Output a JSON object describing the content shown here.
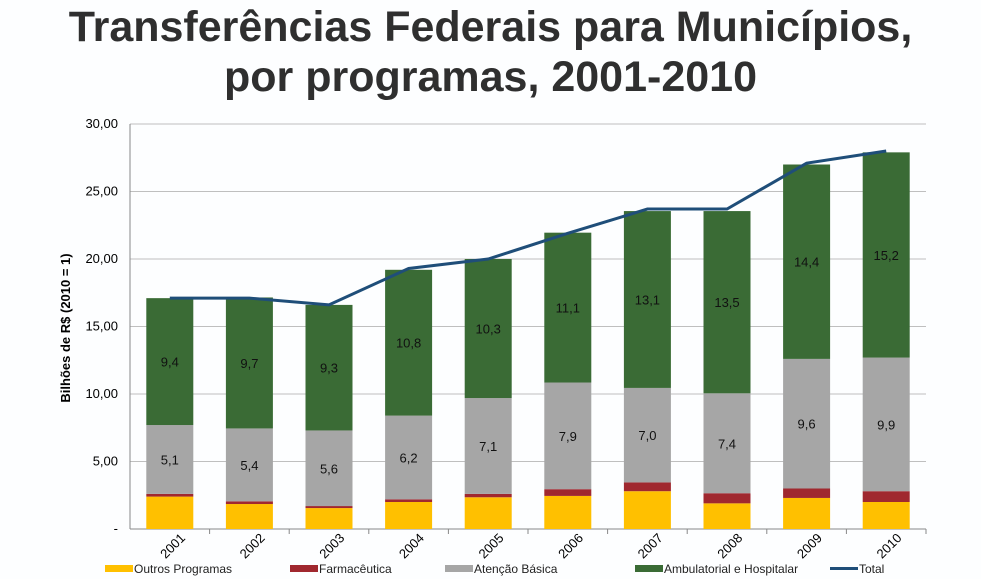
{
  "title_line1": "Transferências Federais para Municípios,",
  "title_line2": "por programas, 2001-2010",
  "chart_data": {
    "type": "bar",
    "stacked": true,
    "ylabel": "Bilhões de R$ (2010 = 1)",
    "xlabel": "",
    "ylim": [
      0,
      30
    ],
    "ytick_labels": [
      "-",
      "5,00",
      "10,00",
      "15,00",
      "20,00",
      "25,00",
      "30,00"
    ],
    "grid": true,
    "legend": "bottom",
    "categories": [
      "2001",
      "2002",
      "2003",
      "2004",
      "2005",
      "2006",
      "2007",
      "2008",
      "2009",
      "2010"
    ],
    "series": [
      {
        "name": "Outros Programas",
        "color": "#ffc000",
        "values": [
          2.4,
          1.85,
          1.55,
          2.0,
          2.35,
          2.45,
          2.8,
          1.9,
          2.3,
          2.0
        ]
      },
      {
        "name": "Farmacêutica",
        "color": "#a0282f",
        "values": [
          0.2,
          0.2,
          0.15,
          0.2,
          0.25,
          0.5,
          0.65,
          0.75,
          0.7,
          0.8
        ]
      },
      {
        "name": "Atenção Básica",
        "color": "#a6a6a6",
        "values": [
          5.1,
          5.4,
          5.6,
          6.2,
          7.1,
          7.9,
          7.0,
          7.4,
          9.6,
          9.9
        ],
        "data_labels": [
          "5,1",
          "5,4",
          "5,6",
          "6,2",
          "7,1",
          "7,9",
          "7,0",
          "7,4",
          "9,6",
          "9,9"
        ]
      },
      {
        "name": "Ambulatorial e Hospitalar",
        "color": "#3a6b35",
        "values": [
          9.4,
          9.7,
          9.3,
          10.8,
          10.3,
          11.1,
          13.1,
          13.5,
          14.4,
          15.2
        ],
        "data_labels": [
          "9,4",
          "9,7",
          "9,3",
          "10,8",
          "10,3",
          "11,1",
          "13,1",
          "13,5",
          "14,4",
          "15,2"
        ]
      }
    ],
    "line_series": {
      "name": "Total",
      "color": "#1f4e79",
      "values": [
        17.1,
        17.1,
        16.6,
        19.3,
        20.0,
        21.9,
        23.7,
        23.7,
        27.1,
        28.0
      ]
    }
  }
}
